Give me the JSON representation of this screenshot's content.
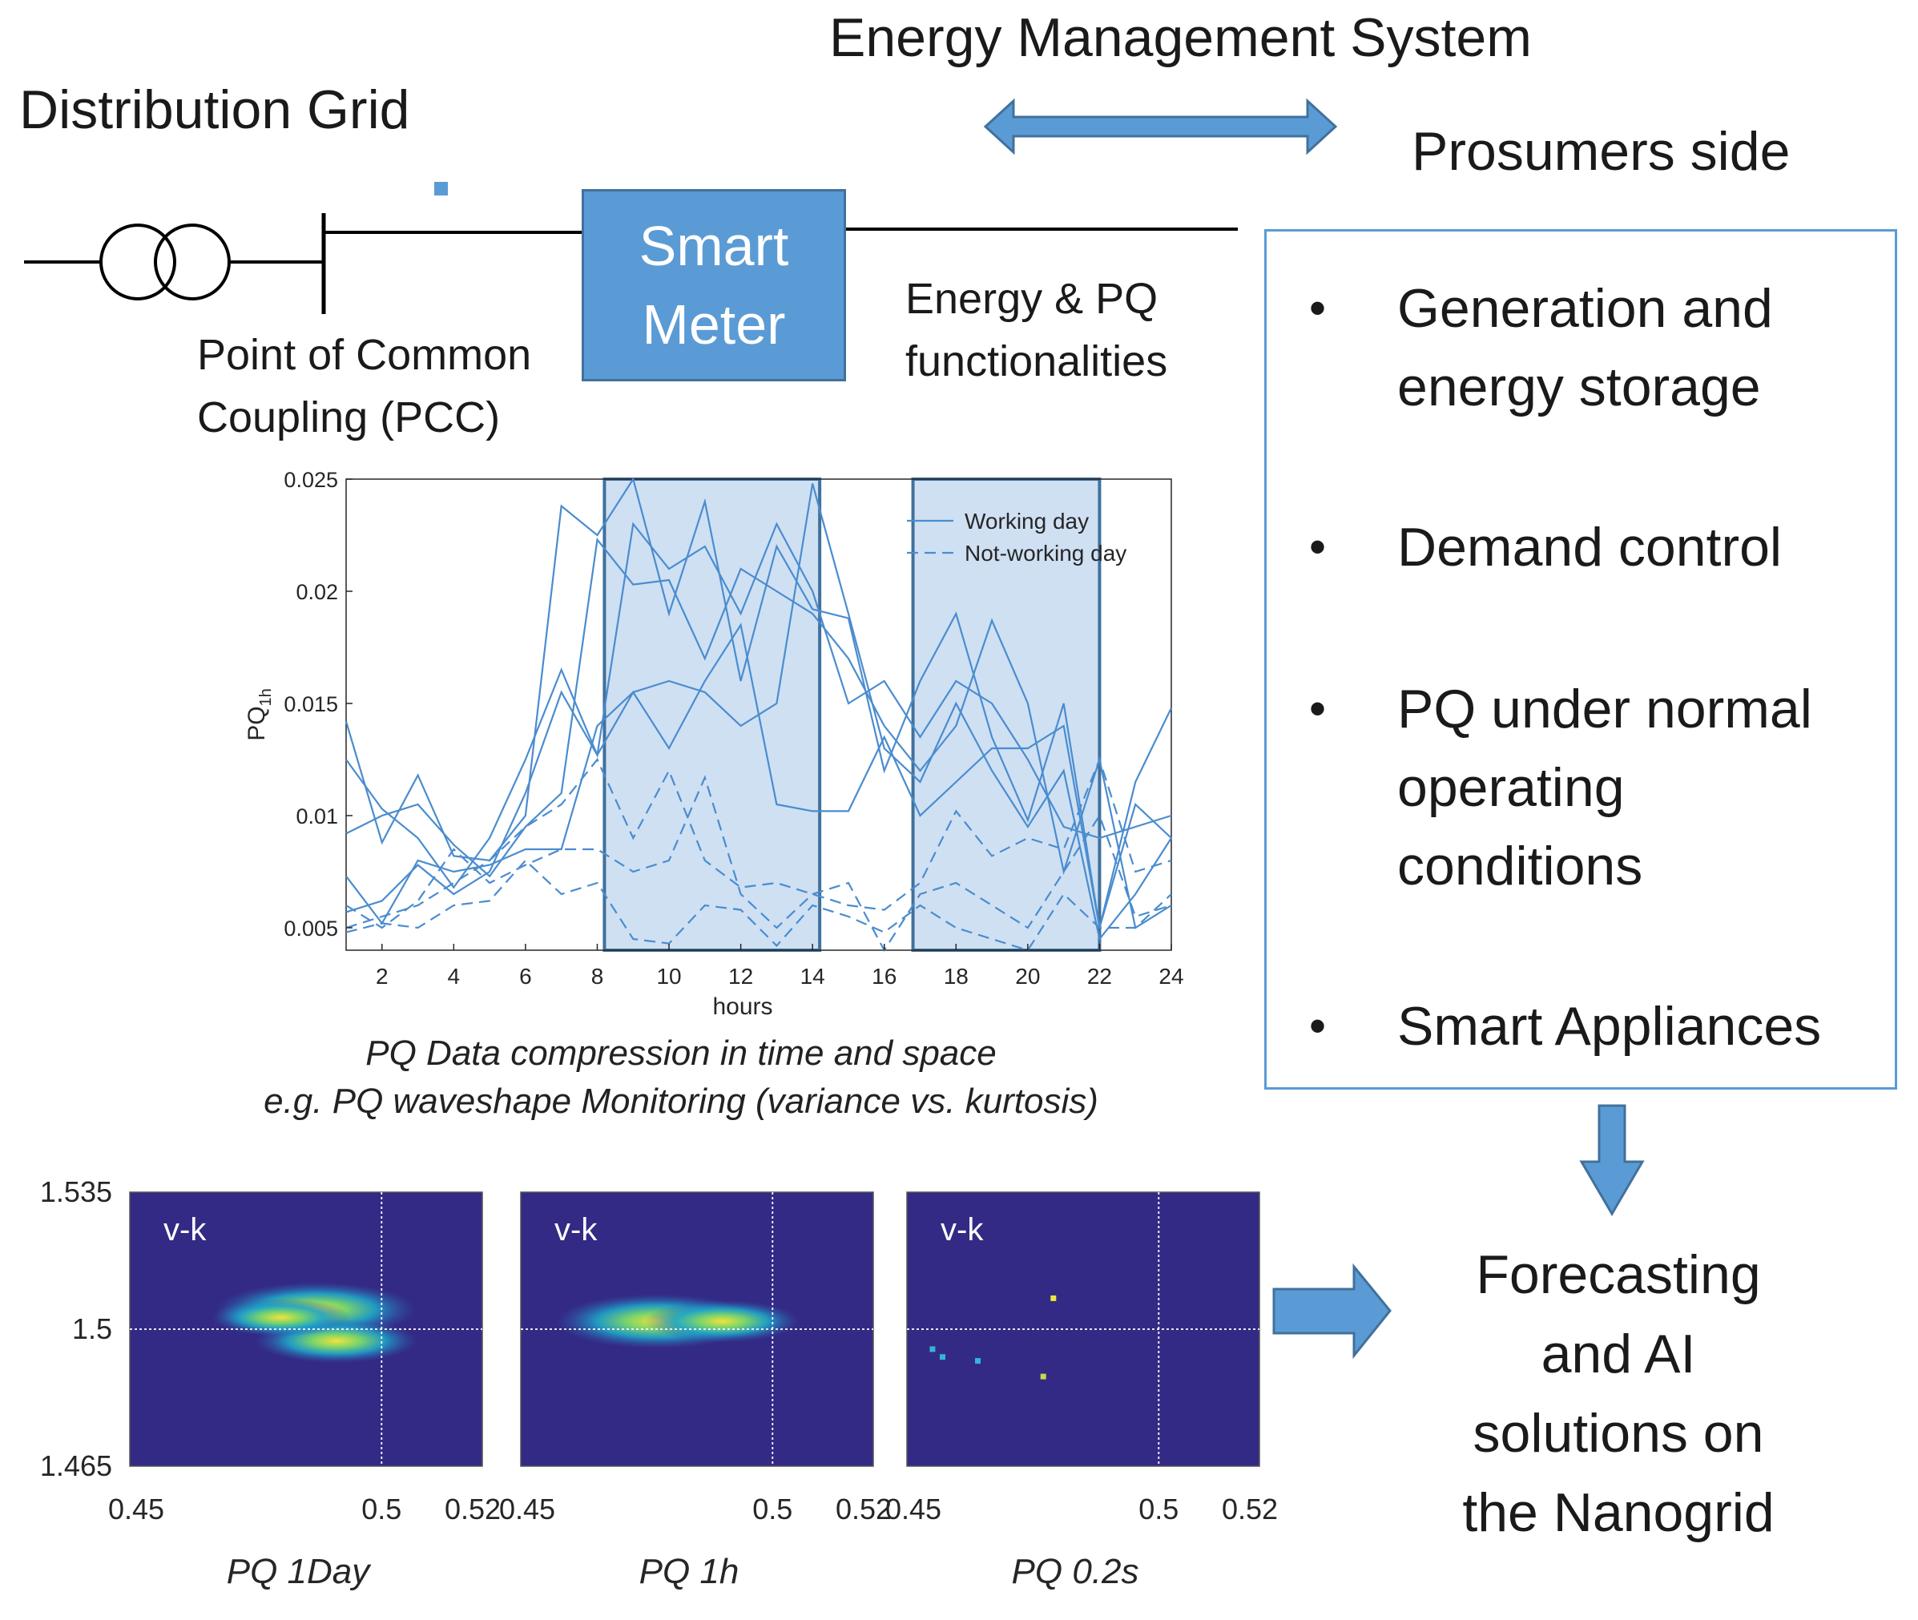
{
  "header": {
    "ems_label": "Energy Management System",
    "grid_label": "Distribution Grid",
    "prosumers_label": "Prosumers side"
  },
  "circuit": {
    "pcc_line1": "Point of Common",
    "pcc_line2": "Coupling (PCC)",
    "meter_line1": "Smart",
    "meter_line2": "Meter",
    "func_line1": "Energy & PQ",
    "func_line2": "functionalities"
  },
  "prosumers": {
    "items": [
      {
        "lines": [
          "Generation and",
          "energy storage"
        ]
      },
      {
        "lines": [
          "Demand control"
        ]
      },
      {
        "lines": [
          "PQ under normal",
          "operating",
          "conditions"
        ]
      },
      {
        "lines": [
          "Smart Appliances"
        ]
      }
    ]
  },
  "forecast": {
    "lines": [
      "Forecasting",
      "and AI",
      "solutions on",
      "the Nanogrid"
    ]
  },
  "captions": {
    "line1": "PQ  Data compression in time and space",
    "line2": "e.g. PQ waveshape Monitoring (variance vs. kurtosis)"
  },
  "colors": {
    "accent": "#5b9bd5",
    "accent_dark": "#41719c",
    "line_blue": "#4a8ccf",
    "highlight_fill": "#cfe0f3",
    "heatmap_bg": "#332a85"
  },
  "chart_data": [
    {
      "type": "line",
      "xlabel": "hours",
      "ylabel": "PQ",
      "ylabel_sub": "1h",
      "xlim": [
        1,
        24
      ],
      "ylim": [
        0.004,
        0.025
      ],
      "xticks": [
        2,
        4,
        6,
        8,
        10,
        12,
        14,
        16,
        18,
        20,
        22,
        24
      ],
      "yticks": [
        0.005,
        0.01,
        0.015,
        0.02,
        0.025
      ],
      "ytick_labels": [
        "0.005",
        "0.01",
        "0.015",
        "0.02",
        "0.025"
      ],
      "legend": [
        "Working day",
        "Not-working day"
      ],
      "legend_position": "top-right",
      "highlight_ranges": [
        [
          8.2,
          14.2
        ],
        [
          16.8,
          22.0
        ]
      ],
      "x": [
        1,
        2,
        3,
        4,
        5,
        6,
        7,
        8,
        9,
        10,
        11,
        12,
        13,
        14,
        15,
        16,
        17,
        18,
        19,
        20,
        21,
        22,
        23,
        24
      ],
      "series": [
        {
          "name": "Working day 1",
          "style": "solid",
          "values": [
            0.0142,
            0.0088,
            0.0118,
            0.0082,
            0.008,
            0.01,
            0.0238,
            0.0225,
            0.025,
            0.019,
            0.024,
            0.016,
            0.022,
            0.0192,
            0.0188,
            0.012,
            0.016,
            0.019,
            0.0135,
            0.0098,
            0.015,
            0.005,
            0.0115,
            0.0148
          ]
        },
        {
          "name": "Working day 2",
          "style": "solid",
          "values": [
            0.0125,
            0.0103,
            0.009,
            0.0068,
            0.009,
            0.0125,
            0.0165,
            0.0127,
            0.023,
            0.021,
            0.022,
            0.019,
            0.023,
            0.02,
            0.015,
            0.016,
            0.0135,
            0.016,
            0.015,
            0.0125,
            0.0095,
            0.009,
            0.0095,
            0.01
          ]
        },
        {
          "name": "Working day 3",
          "style": "solid",
          "values": [
            0.0092,
            0.01,
            0.0105,
            0.0087,
            0.0073,
            0.0095,
            0.011,
            0.0223,
            0.0203,
            0.0205,
            0.017,
            0.021,
            0.02,
            0.019,
            0.017,
            0.014,
            0.012,
            0.014,
            0.0187,
            0.015,
            0.0075,
            0.0125,
            0.005,
            0.006
          ]
        },
        {
          "name": "Working day 4",
          "style": "solid",
          "values": [
            0.0057,
            0.0062,
            0.0078,
            0.0065,
            0.0075,
            0.011,
            0.0155,
            0.0127,
            0.0155,
            0.013,
            0.016,
            0.0185,
            0.0105,
            0.0102,
            0.0102,
            0.0135,
            0.01,
            0.0115,
            0.013,
            0.013,
            0.014,
            0.005,
            0.0105,
            0.009
          ]
        },
        {
          "name": "Working day 5",
          "style": "solid",
          "values": [
            0.0073,
            0.0052,
            0.008,
            0.0075,
            0.0078,
            0.0085,
            0.0085,
            0.014,
            0.0155,
            0.016,
            0.0155,
            0.014,
            0.015,
            0.0248,
            0.019,
            0.013,
            0.0115,
            0.015,
            0.012,
            0.0095,
            0.012,
            0.0045,
            0.0065,
            0.009
          ]
        },
        {
          "name": "Not-working day 1",
          "style": "dashed",
          "values": [
            0.005,
            0.0055,
            0.006,
            0.007,
            0.008,
            0.0095,
            0.0105,
            0.0125,
            0.009,
            0.012,
            0.008,
            0.0068,
            0.007,
            0.0065,
            0.006,
            0.0058,
            0.007,
            0.0102,
            0.0082,
            0.009,
            0.0085,
            0.0125,
            0.0075,
            0.008
          ]
        },
        {
          "name": "Not-working day 2",
          "style": "dashed",
          "values": [
            0.006,
            0.005,
            0.0062,
            0.0085,
            0.007,
            0.0078,
            0.0085,
            0.0085,
            0.0075,
            0.008,
            0.0117,
            0.0065,
            0.005,
            0.0065,
            0.007,
            0.004,
            0.0065,
            0.007,
            0.006,
            0.005,
            0.0075,
            0.01,
            0.0055,
            0.006
          ]
        },
        {
          "name": "Not-working day 3",
          "style": "dashed",
          "values": [
            0.0048,
            0.0052,
            0.005,
            0.006,
            0.0062,
            0.008,
            0.0065,
            0.007,
            0.0045,
            0.0043,
            0.006,
            0.0058,
            0.0042,
            0.006,
            0.0055,
            0.0048,
            0.006,
            0.005,
            0.0045,
            0.004,
            0.0065,
            0.005,
            0.005,
            0.0065
          ]
        }
      ]
    },
    {
      "type": "heatmap",
      "title": "v-k",
      "xlabel": "PQ 1Day",
      "xlim": [
        0.45,
        0.52
      ],
      "ylim": [
        1.465,
        1.535
      ],
      "xtick_labels": [
        "0.45",
        "0.5",
        "0.52"
      ],
      "ytick_labels": [
        "1.535",
        "1.5",
        "1.465"
      ],
      "reference_lines": {
        "x": 0.5,
        "y": 1.5
      },
      "blobs": [
        {
          "x": 0.487,
          "y": 1.505,
          "intensity": 1.0
        },
        {
          "x": 0.491,
          "y": 1.497,
          "intensity": 0.75
        },
        {
          "x": 0.48,
          "y": 1.503,
          "intensity": 0.6
        }
      ]
    },
    {
      "type": "heatmap",
      "title": "v-k",
      "xlabel": "PQ 1h",
      "xlim": [
        0.45,
        0.52
      ],
      "ylim": [
        1.465,
        1.535
      ],
      "xtick_labels": [
        "0.45",
        "0.5",
        "0.52"
      ],
      "reference_lines": {
        "x": 0.5,
        "y": 1.5
      },
      "blobs": [
        {
          "x": 0.477,
          "y": 1.502,
          "intensity": 1.0
        },
        {
          "x": 0.49,
          "y": 1.502,
          "intensity": 0.7
        }
      ]
    },
    {
      "type": "heatmap",
      "title": "v-k",
      "xlabel": "PQ 0.2s",
      "xlim": [
        0.45,
        0.52
      ],
      "ylim": [
        1.465,
        1.535
      ],
      "xtick_labels": [
        "0.45",
        "0.5",
        "0.52"
      ],
      "reference_lines": {
        "x": 0.5,
        "y": 1.5
      },
      "points": [
        {
          "x": 0.479,
          "y": 1.508,
          "color": "#e8e83a"
        },
        {
          "x": 0.455,
          "y": 1.495,
          "color": "#35b4d9"
        },
        {
          "x": 0.457,
          "y": 1.493,
          "color": "#35b4d9"
        },
        {
          "x": 0.464,
          "y": 1.492,
          "color": "#35b4d9"
        },
        {
          "x": 0.477,
          "y": 1.488,
          "color": "#c8d84a"
        }
      ]
    }
  ]
}
